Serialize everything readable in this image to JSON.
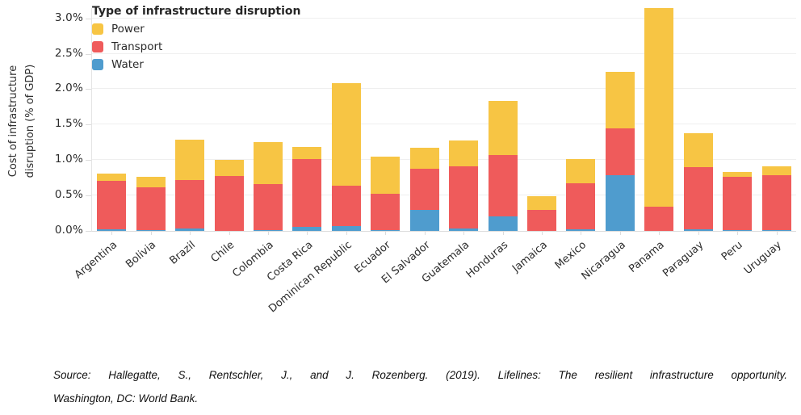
{
  "chart_data": {
    "type": "bar",
    "stacked": true,
    "ylabel_lines": [
      "Cost of infrastructure",
      "disruption (% of GDP)"
    ],
    "categories": [
      "Argentina",
      "Bolivia",
      "Brazil",
      "Chile",
      "Colombia",
      "Costa Rica",
      "Dominican Republic",
      "Ecuador",
      "El Salvador",
      "Guatemala",
      "Honduras",
      "Jamaica",
      "Mexico",
      "Nicaragua",
      "Panama",
      "Paraguay",
      "Peru",
      "Uruguay"
    ],
    "series": [
      {
        "name": "Water",
        "color": "#4F9CCE",
        "values": [
          0.02,
          0.01,
          0.03,
          0.0,
          0.01,
          0.06,
          0.07,
          0.01,
          0.3,
          0.03,
          0.21,
          0.0,
          0.02,
          0.79,
          0.0,
          0.02,
          0.01,
          0.01
        ]
      },
      {
        "name": "Transport",
        "color": "#EF5B5B",
        "values": [
          0.69,
          0.6,
          0.69,
          0.78,
          0.65,
          0.96,
          0.57,
          0.52,
          0.58,
          0.88,
          0.86,
          0.3,
          0.65,
          0.66,
          0.34,
          0.88,
          0.75,
          0.78
        ]
      },
      {
        "name": "Power",
        "color": "#F7C544",
        "values": [
          0.1,
          0.15,
          0.57,
          0.22,
          0.59,
          0.16,
          1.45,
          0.52,
          0.29,
          0.37,
          0.76,
          0.19,
          0.35,
          0.79,
          2.81,
          0.48,
          0.07,
          0.12
        ]
      }
    ],
    "stack_order_bottom_to_top": [
      "Water",
      "Transport",
      "Power"
    ],
    "yticks": [
      0.0,
      0.5,
      1.0,
      1.5,
      2.0,
      2.5,
      3.0
    ],
    "ytick_labels": [
      "0.0%",
      "0.5%",
      "1.0%",
      "1.5%",
      "2.0%",
      "2.5%",
      "3.0%"
    ],
    "ylim": [
      0,
      3.145
    ],
    "grid": "horizontal",
    "legend_position": "top-left"
  },
  "legend": {
    "title": "Type of infrastructure disruption",
    "items": [
      {
        "label": "Power",
        "color": "#F7C544"
      },
      {
        "label": "Transport",
        "color": "#EF5B5B"
      },
      {
        "label": "Water",
        "color": "#4F9CCE"
      }
    ]
  },
  "source": {
    "line1": "Source: Hallegatte, S., Rentschler, J., and J. Rozenberg. (2019). Lifelines: The resilient infrastructure opportunity.",
    "line2": "Washington, DC: World Bank."
  },
  "colors": {
    "power": "#F7C544",
    "transport": "#EF5B5B",
    "water": "#4F9CCE",
    "gridline": "#EFEFEF",
    "axis": "#DCDCDC",
    "text": "#2B2B2B"
  }
}
